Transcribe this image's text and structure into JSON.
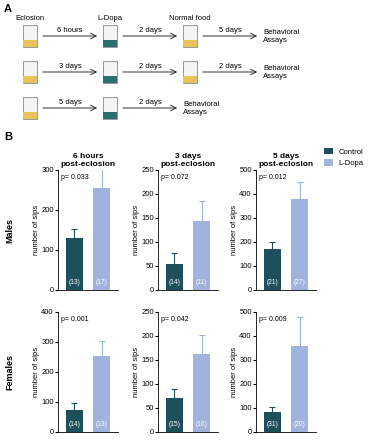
{
  "panel_a": {
    "label": "A",
    "headers": [
      "Eclosion",
      "L-Dopa",
      "Normal food"
    ],
    "rows": [
      {
        "steps": [
          "6 hours",
          "2 days",
          "5 days"
        ],
        "end": "Behavioral\nAssays"
      },
      {
        "steps": [
          "3 days",
          "2 days",
          "2 days"
        ],
        "end": "Behavioral\nAssays"
      },
      {
        "steps": [
          "5 days",
          "2 days"
        ],
        "end": "Behavioral\nAssays"
      }
    ]
  },
  "panel_b_label": "B",
  "row_labels": [
    "Males",
    "Females"
  ],
  "chart_data": [
    {
      "type": "bar",
      "title": "6 hours\npost-eclosion",
      "y_label": "number of sips",
      "categories": [
        null,
        null
      ],
      "tick_labels": "y",
      "series": [
        {
          "name": "Control",
          "color": "#1d4f5c",
          "values": [
            130,
            null
          ],
          "errors": [
            22,
            null
          ]
        },
        {
          "name": "L-Dopa",
          "color": "#9fb3dc",
          "values": [
            null,
            255
          ],
          "errors": [
            null,
            48
          ]
        }
      ],
      "ylim": [
        0,
        300
      ],
      "yticks": [
        0,
        100,
        200,
        300
      ],
      "annotations": [
        "p= 0.033"
      ],
      "n_labels": [
        "(13)",
        "(17)"
      ]
    },
    {
      "type": "bar",
      "title": "3 days\npost-eclosion",
      "y_label": "number of sips",
      "categories": [
        null,
        null
      ],
      "tick_labels": "y",
      "series": [
        {
          "name": "Control",
          "color": "#1d4f5c",
          "values": [
            55,
            null
          ],
          "errors": [
            22,
            null
          ]
        },
        {
          "name": "L-Dopa",
          "color": "#9fb3dc",
          "values": [
            null,
            143
          ],
          "errors": [
            null,
            42
          ]
        }
      ],
      "ylim": [
        0,
        250
      ],
      "yticks": [
        0,
        50,
        100,
        150,
        200,
        250
      ],
      "annotations": [
        "p= 0.072"
      ],
      "n_labels": [
        "(14)",
        "(11)"
      ]
    },
    {
      "type": "bar",
      "title": "5 days\npost-eclosion",
      "y_label": "number of sips",
      "categories": [
        null,
        null
      ],
      "tick_labels": "y",
      "legend": "upper left",
      "series": [
        {
          "name": "Control",
          "color": "#1d4f5c",
          "values": [
            170,
            null
          ],
          "errors": [
            30,
            null
          ]
        },
        {
          "name": "L-Dopa",
          "color": "#9fb3dc",
          "values": [
            null,
            380
          ],
          "errors": [
            null,
            70
          ]
        }
      ],
      "ylim": [
        0,
        500
      ],
      "yticks": [
        0,
        100,
        200,
        300,
        400,
        500
      ],
      "annotations": [
        "p= 0.012"
      ],
      "n_labels": [
        "(21)",
        "(27)"
      ]
    },
    {
      "type": "bar",
      "y_label": "number of sips",
      "categories": [
        null,
        null
      ],
      "tick_labels": "y",
      "series": [
        {
          "name": "Control",
          "color": "#1d4f5c",
          "values": [
            75,
            null
          ],
          "errors": [
            22,
            null
          ]
        },
        {
          "name": "L-Dopa",
          "color": "#9fb3dc",
          "values": [
            null,
            255
          ],
          "errors": [
            null,
            50
          ]
        }
      ],
      "ylim": [
        0,
        400
      ],
      "yticks": [
        0,
        100,
        200,
        300,
        400
      ],
      "annotations": [
        "p= 0.001"
      ],
      "n_labels": [
        "(14)",
        "(13)"
      ]
    },
    {
      "type": "bar",
      "y_label": "number of sips",
      "categories": [
        null,
        null
      ],
      "tick_labels": "y",
      "series": [
        {
          "name": "Control",
          "color": "#1d4f5c",
          "values": [
            70,
            null
          ],
          "errors": [
            20,
            null
          ]
        },
        {
          "name": "L-Dopa",
          "color": "#9fb3dc",
          "values": [
            null,
            163
          ],
          "errors": [
            null,
            40
          ]
        }
      ],
      "ylim": [
        0,
        250
      ],
      "yticks": [
        0,
        50,
        100,
        150,
        200,
        250
      ],
      "annotations": [
        "p= 0.042"
      ],
      "n_labels": [
        "(15)",
        "(16)"
      ]
    },
    {
      "type": "bar",
      "y_label": "number of sips",
      "categories": [
        null,
        null
      ],
      "tick_labels": "y",
      "series": [
        {
          "name": "Control",
          "color": "#1d4f5c",
          "values": [
            83,
            null
          ],
          "errors": [
            20,
            null
          ]
        },
        {
          "name": "L-Dopa",
          "color": "#9fb3dc",
          "values": [
            null,
            358
          ],
          "errors": [
            null,
            122
          ]
        }
      ],
      "ylim": [
        0,
        500
      ],
      "yticks": [
        0,
        100,
        200,
        300,
        400,
        500
      ],
      "annotations": [
        "p= 0.009"
      ],
      "n_labels": [
        "(31)",
        "(20)"
      ]
    }
  ]
}
